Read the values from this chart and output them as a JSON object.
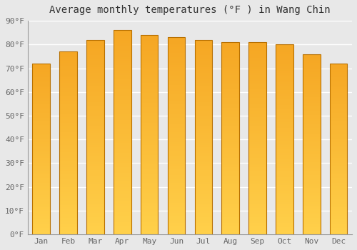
{
  "title": "Average monthly temperatures (°F ) in Wang Chin",
  "months": [
    "Jan",
    "Feb",
    "Mar",
    "Apr",
    "May",
    "Jun",
    "Jul",
    "Aug",
    "Sep",
    "Oct",
    "Nov",
    "Dec"
  ],
  "values": [
    72,
    77,
    82,
    86,
    84,
    83,
    82,
    81,
    81,
    80,
    76,
    72
  ],
  "bar_color_bottom": "#FFD04A",
  "bar_color_top": "#F5A623",
  "ylim": [
    0,
    90
  ],
  "yticks": [
    0,
    10,
    20,
    30,
    40,
    50,
    60,
    70,
    80,
    90
  ],
  "ytick_labels": [
    "0°F",
    "10°F",
    "20°F",
    "30°F",
    "40°F",
    "50°F",
    "60°F",
    "70°F",
    "80°F",
    "90°F"
  ],
  "background_color": "#e8e8e8",
  "grid_color": "#ffffff",
  "title_fontsize": 10,
  "tick_fontsize": 8,
  "bar_edge_color": "#b87000",
  "figsize": [
    5.0,
    3.5
  ],
  "dpi": 100
}
